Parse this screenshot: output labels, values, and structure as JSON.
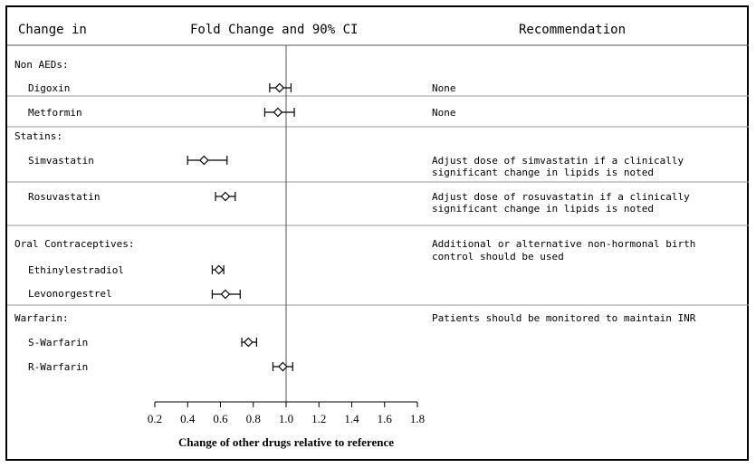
{
  "headers": {
    "col1": "Change in",
    "col2": "Fold Change and 90% CI",
    "col3": "Recommendation"
  },
  "groups": [
    {
      "label": "Non AEDs:",
      "drugs": [
        {
          "name": "Digoxin",
          "recommendation": [
            "None"
          ]
        },
        {
          "name": "Metformin",
          "recommendation": [
            "None"
          ]
        }
      ]
    },
    {
      "label": "Statins:",
      "drugs": [
        {
          "name": "Simvastatin",
          "recommendation": [
            "Adjust dose of simvastatin if a clinically",
            "significant change in lipids is noted"
          ]
        },
        {
          "name": "Rosuvastatin",
          "recommendation": [
            "Adjust dose of rosuvastatin if a clinically",
            "significant change in lipids is noted"
          ]
        }
      ]
    },
    {
      "label": "Oral Contraceptives:",
      "recommendation": [
        "Additional or alternative non-hormonal birth",
        "control should be used"
      ],
      "drugs": [
        {
          "name": "Ethinylestradiol"
        },
        {
          "name": "Levonorgestrel"
        }
      ]
    },
    {
      "label": "Warfarin:",
      "recommendation": [
        "Patients should be monitored to maintain INR"
      ],
      "drugs": [
        {
          "name": "S-Warfarin"
        },
        {
          "name": "R-Warfarin"
        }
      ]
    }
  ],
  "chart_data": {
    "type": "scatter",
    "title": "Fold Change and 90% CI",
    "xlabel": "Change of other drugs relative to reference",
    "xlim": [
      0.2,
      1.8
    ],
    "xticks": [
      0.2,
      0.4,
      0.6,
      0.8,
      1.0,
      1.2,
      1.4,
      1.6,
      1.8
    ],
    "xtick_labels": [
      "0.2",
      "0.4",
      "0.6",
      "0.8",
      "1.0",
      "1.2",
      "1.4",
      "1.6",
      "1.8"
    ],
    "reference_line": 1.0,
    "points": [
      {
        "drug": "Digoxin",
        "estimate": 0.96,
        "lower": 0.9,
        "upper": 1.03
      },
      {
        "drug": "Metformin",
        "estimate": 0.95,
        "lower": 0.87,
        "upper": 1.05
      },
      {
        "drug": "Simvastatin",
        "estimate": 0.5,
        "lower": 0.4,
        "upper": 0.64
      },
      {
        "drug": "Rosuvastatin",
        "estimate": 0.63,
        "lower": 0.57,
        "upper": 0.69
      },
      {
        "drug": "Ethinylestradiol",
        "estimate": 0.59,
        "lower": 0.55,
        "upper": 0.62
      },
      {
        "drug": "Levonorgestrel",
        "estimate": 0.63,
        "lower": 0.55,
        "upper": 0.72
      },
      {
        "drug": "S-Warfarin",
        "estimate": 0.77,
        "lower": 0.73,
        "upper": 0.82
      },
      {
        "drug": "R-Warfarin",
        "estimate": 0.98,
        "lower": 0.92,
        "upper": 1.04
      }
    ]
  }
}
